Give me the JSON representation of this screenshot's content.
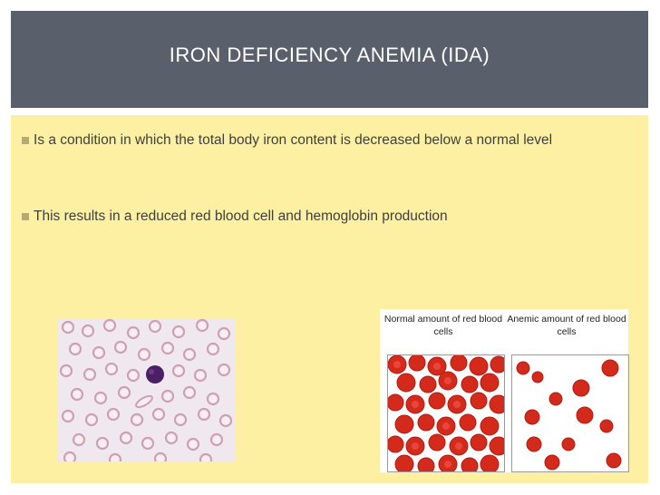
{
  "slide": {
    "title": "IRON DEFICIENCY ANEMIA (IDA)",
    "bullets": [
      "Is a condition in which the total body iron content is decreased below a normal level",
      "This results in a reduced red blood cell and hemoglobin production"
    ]
  },
  "figure": {
    "normal_label": "Normal amount of red blood cells",
    "anemic_label": "Anemic amount of red blood cells"
  },
  "colors": {
    "title_bar": "#5a606b",
    "content_bg": "#fdf0a3",
    "bullet_marker": "#b7a977",
    "red_cell": "#d42a1c",
    "pale_cell": "#e9c6d0",
    "lymphocyte": "#4b1f63"
  }
}
